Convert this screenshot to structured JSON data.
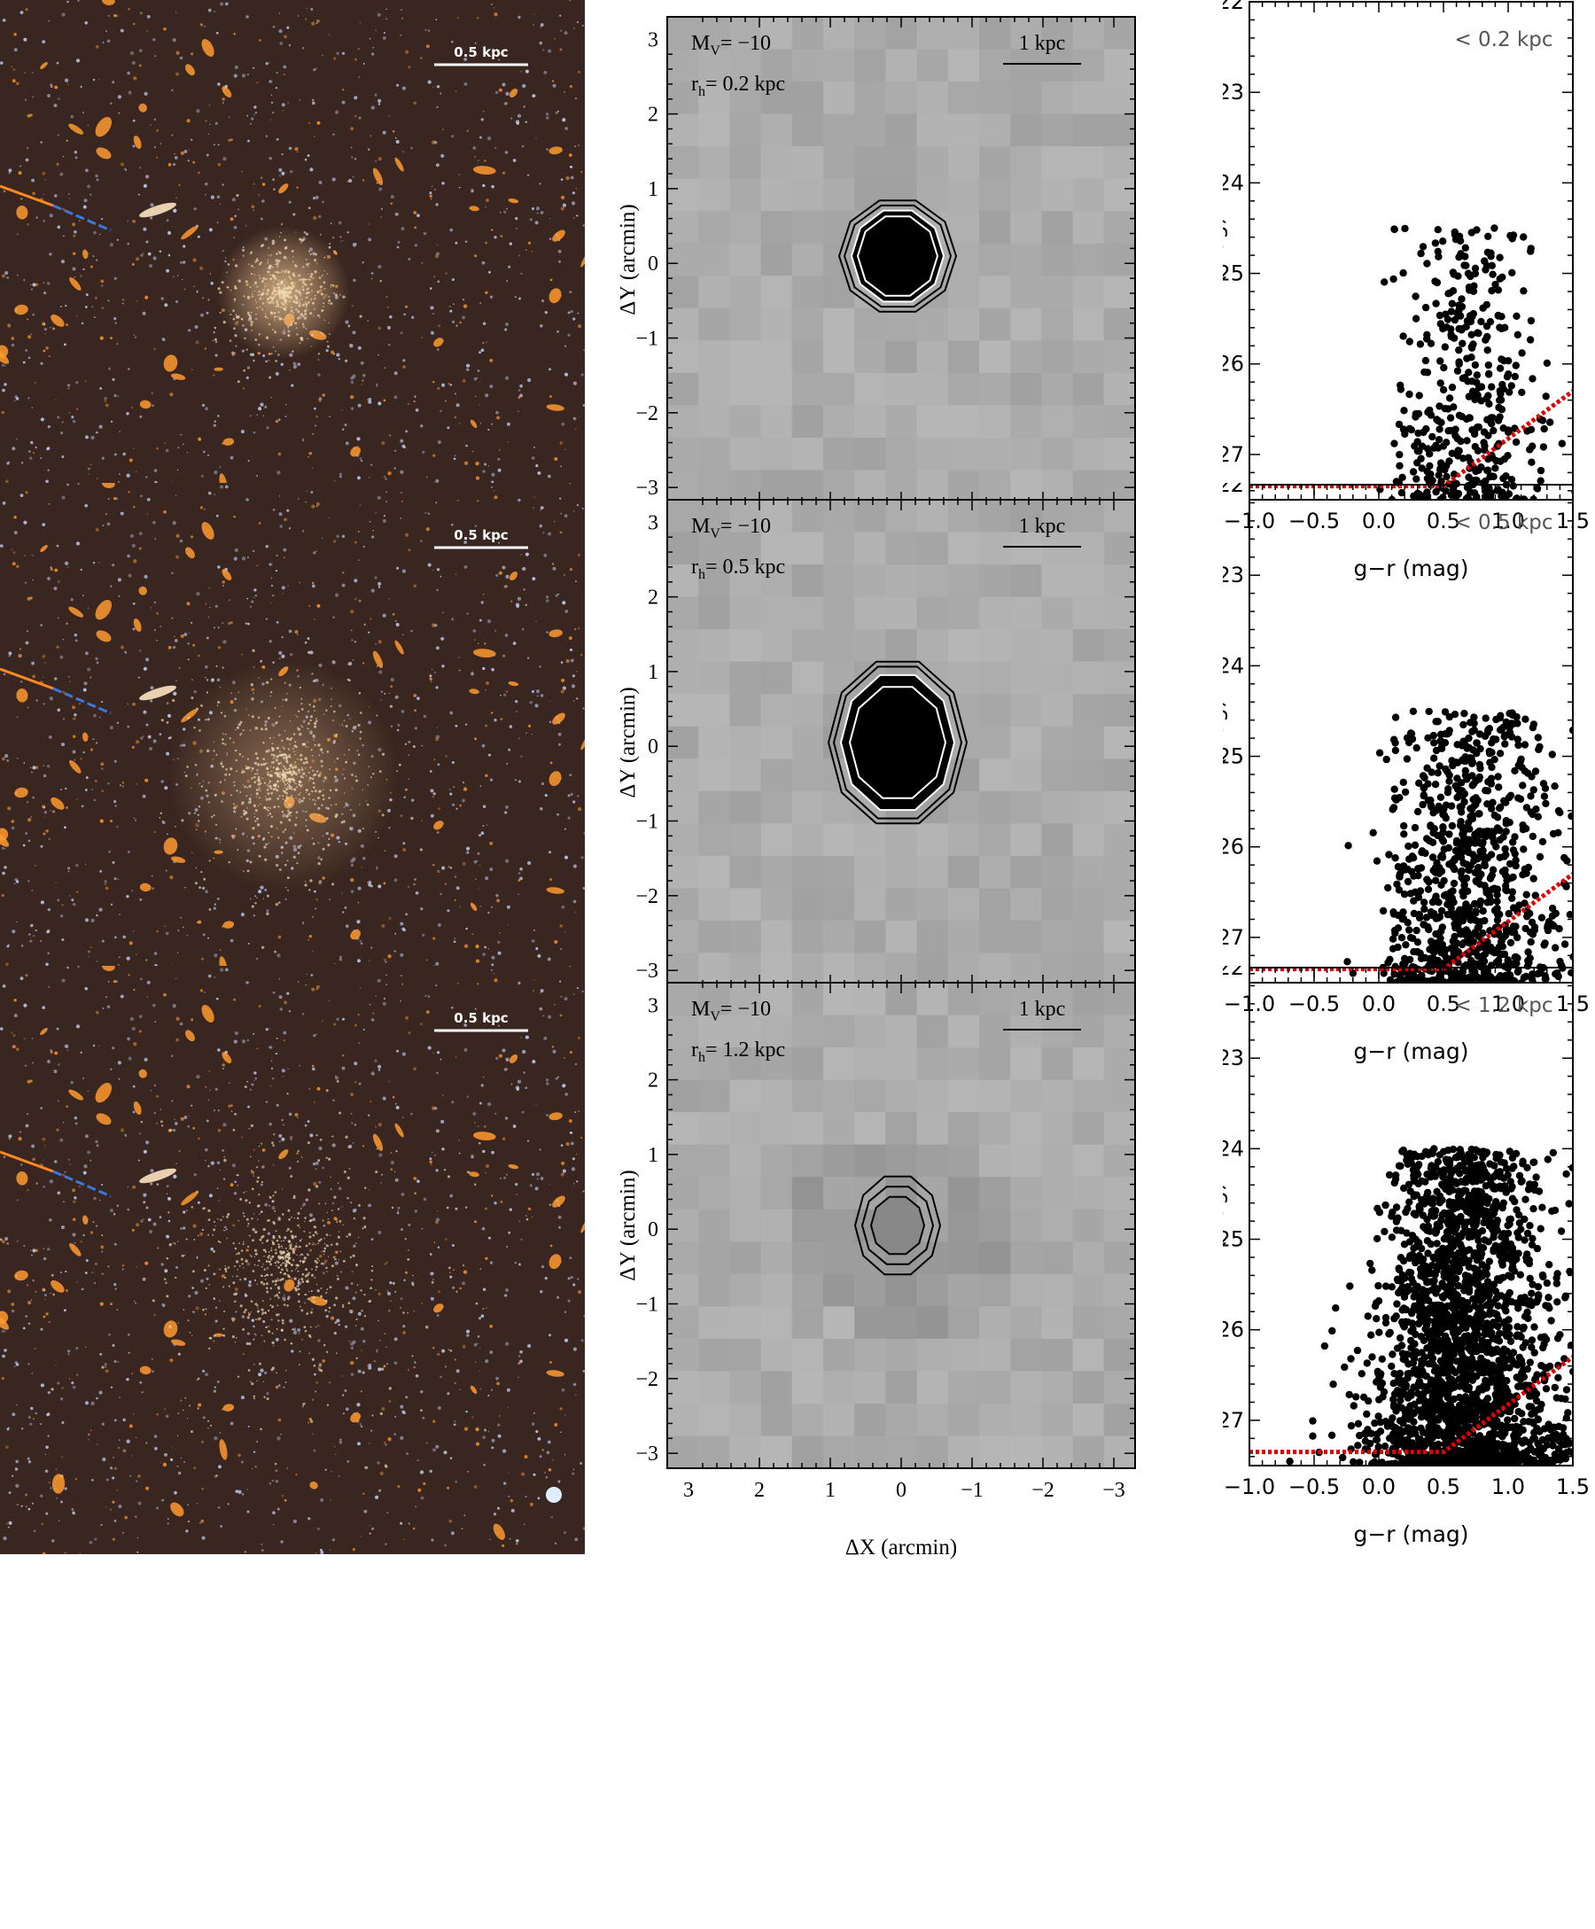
{
  "figure": {
    "colors": {
      "sky_bg": "#3a2620",
      "star_blue": "#c8d6ff",
      "star_orange": "#ff9a30",
      "galaxy_glow": "#e8c090",
      "limit_line": "#e00000",
      "scalebar_text": "#ffffff",
      "map_bg": "#b4b4b4"
    },
    "sky_scale_label": "0.5 kpc",
    "map_scale_label": "1 kpc",
    "map_mag_label": {
      "main": "M",
      "sub": "V",
      "rest": "= −10"
    },
    "map_radius_prefix": {
      "main": "r",
      "sub": "h",
      "eq": "= "
    },
    "map_xlabel": "ΔX (arcmin)",
    "map_ylabel": "ΔY (arcmin)",
    "map_xticks": [
      "3",
      "2",
      "1",
      "0",
      "−1",
      "−2",
      "−3"
    ],
    "map_yticks": [
      "3",
      "2",
      "1",
      "0",
      "−1",
      "−2",
      "−3"
    ],
    "cmd_xlabel": "g−r (mag)",
    "cmd_ylabel": "r (mag)",
    "cmd_xticks": [
      "−1.0",
      "−0.5",
      "0.0",
      "0.5",
      "1.0",
      "1.5"
    ],
    "cmd_yticks": [
      "22",
      "23",
      "24",
      "25",
      "26",
      "27"
    ],
    "rows": [
      {
        "rh_value": "0.2 kpc",
        "cmd_label": "< 0.2 kpc"
      },
      {
        "rh_value": "0.5 kpc",
        "cmd_label": "< 0.5 kpc"
      },
      {
        "rh_value": "1.2 kpc",
        "cmd_label": "< 1.2 kpc"
      }
    ]
  },
  "chart_data": [
    {
      "type": "scatter",
      "title": "< 0.2 kpc",
      "xlabel": "g−r (mag)",
      "ylabel": "r (mag)",
      "xlim": [
        -1.0,
        1.5
      ],
      "ylim": [
        27.5,
        22.0
      ],
      "n_points": 420,
      "color_center": 0.75,
      "color_spread": 0.2,
      "mag_bright": 24.5,
      "mag_faint": 27.5,
      "limit_line": {
        "flat_r": 27.35,
        "knee_color": 0.5,
        "end": [
          1.5,
          26.3
        ]
      }
    },
    {
      "type": "scatter",
      "title": "< 0.5 kpc",
      "xlabel": "g−r (mag)",
      "ylabel": "r (mag)",
      "xlim": [
        -1.0,
        1.5
      ],
      "ylim": [
        27.5,
        22.0
      ],
      "n_points": 900,
      "color_center": 0.75,
      "color_spread": 0.25,
      "mag_bright": 24.5,
      "mag_faint": 27.5,
      "limit_line": {
        "flat_r": 27.35,
        "knee_color": 0.5,
        "end": [
          1.5,
          26.3
        ]
      }
    },
    {
      "type": "scatter",
      "title": "< 1.2 kpc",
      "xlabel": "g−r (mag)",
      "ylabel": "r (mag)",
      "xlim": [
        -1.0,
        1.5
      ],
      "ylim": [
        27.5,
        22.0
      ],
      "n_points": 2200,
      "color_center": 0.7,
      "color_spread": 0.3,
      "mag_bright": 24.0,
      "mag_faint": 27.5,
      "limit_line": {
        "flat_r": 27.35,
        "knee_color": 0.5,
        "end": [
          1.5,
          26.3
        ]
      }
    }
  ]
}
